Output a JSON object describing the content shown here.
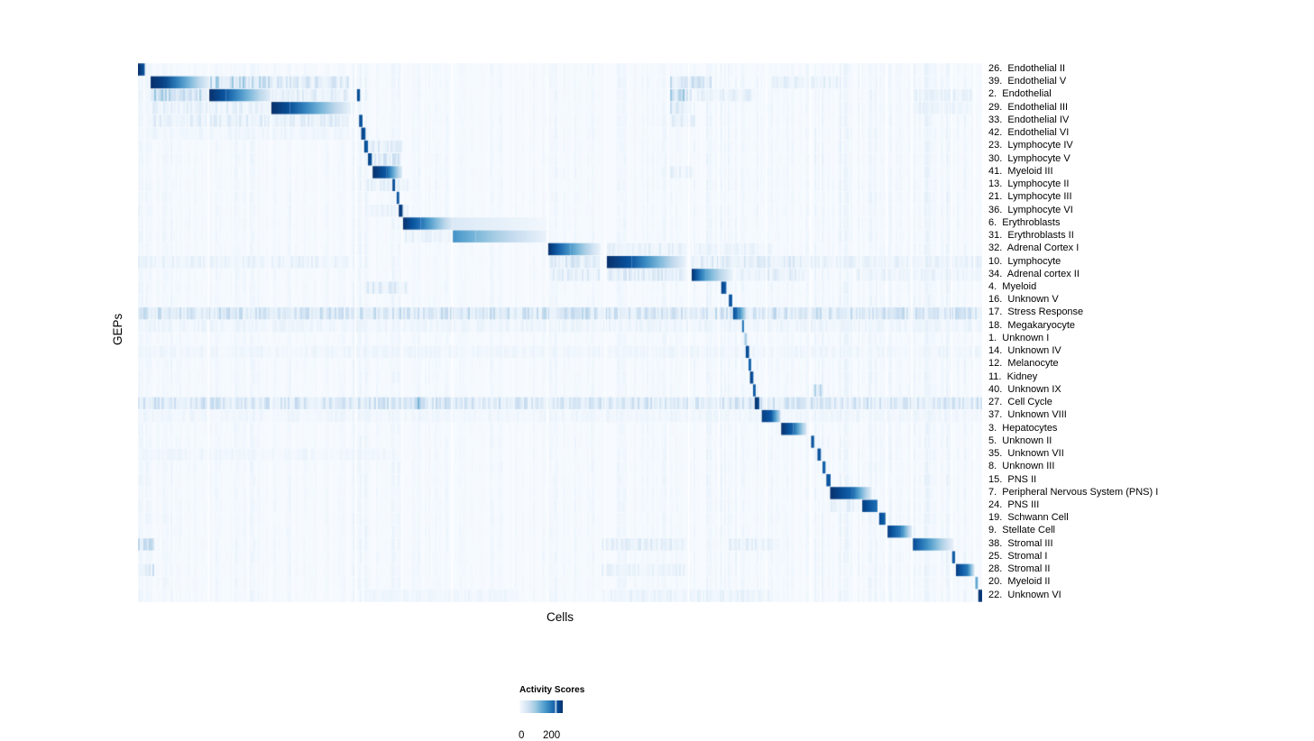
{
  "chart_data": {
    "type": "heatmap",
    "title": "",
    "xlabel": "Cells",
    "ylabel": "GEPs",
    "legend": {
      "title": "Activity Scores",
      "min": {
        "label": "0",
        "frac": 0.05
      },
      "max": {
        "label": "200",
        "frac": 0.84
      }
    },
    "colormap": {
      "name": "Blues",
      "stops": [
        "#f7fbff",
        "#deebf7",
        "#c6dbef",
        "#9ecae1",
        "#6baed6",
        "#4292c6",
        "#2171b5",
        "#08519c",
        "#08306b"
      ]
    },
    "value_range": [
      0,
      200
    ],
    "rows": [
      {
        "label": "26.  Endothelial II",
        "blocks": [
          [
            0.0,
            0.008,
            1.0,
            0.85
          ]
        ],
        "patches": []
      },
      {
        "label": "39.  Endothelial V",
        "blocks": [
          [
            0.015,
            0.032,
            1.0,
            0.92
          ],
          [
            0.032,
            0.085,
            0.92,
            0.08
          ]
        ],
        "patches": [
          [
            0.085,
            0.158,
            0.3
          ],
          [
            0.158,
            0.251,
            0.16
          ],
          [
            0.63,
            0.68,
            0.22
          ],
          [
            0.75,
            0.83,
            0.1
          ]
        ]
      },
      {
        "label": "2.  Endothelial",
        "blocks": [
          [
            0.0845,
            0.104,
            1.0,
            0.85
          ],
          [
            0.104,
            0.157,
            0.85,
            0.1
          ],
          [
            0.2595,
            0.263,
            0.92,
            0.85
          ]
        ],
        "patches": [
          [
            0.015,
            0.084,
            0.3
          ],
          [
            0.158,
            0.251,
            0.12
          ],
          [
            0.63,
            0.656,
            0.33
          ],
          [
            0.66,
            0.73,
            0.1
          ],
          [
            0.92,
            0.99,
            0.1
          ]
        ]
      },
      {
        "label": "29.  Endothelial III",
        "blocks": [
          [
            0.158,
            0.18,
            1.0,
            0.88
          ],
          [
            0.18,
            0.252,
            0.88,
            0.07
          ]
        ],
        "patches": [
          [
            0.015,
            0.157,
            0.1
          ],
          [
            0.63,
            0.656,
            0.18
          ],
          [
            0.92,
            0.99,
            0.08
          ]
        ]
      },
      {
        "label": "33.  Endothelial IV",
        "blocks": [
          [
            0.262,
            0.266,
            0.92,
            0.82
          ]
        ],
        "patches": [
          [
            0.015,
            0.251,
            0.12
          ],
          [
            0.63,
            0.66,
            0.12
          ]
        ]
      },
      {
        "label": "42.  Endothelial VI",
        "blocks": [
          [
            0.2645,
            0.2695,
            0.95,
            0.85
          ]
        ],
        "patches": [
          [
            0.015,
            0.251,
            0.05
          ]
        ]
      },
      {
        "label": "23.  Lymphocyte IV",
        "blocks": [
          [
            0.268,
            0.2725,
            0.92,
            0.8
          ]
        ],
        "patches": [
          [
            0.27,
            0.315,
            0.14
          ]
        ]
      },
      {
        "label": "30.  Lymphocyte V",
        "blocks": [
          [
            0.2725,
            0.277,
            0.95,
            0.85
          ]
        ],
        "patches": [
          [
            0.27,
            0.315,
            0.18
          ]
        ]
      },
      {
        "label": "41.  Myeloid III",
        "blocks": [
          [
            0.278,
            0.294,
            1.0,
            0.85
          ],
          [
            0.294,
            0.313,
            0.85,
            0.12
          ]
        ],
        "patches": [
          [
            0.63,
            0.66,
            0.1
          ]
        ]
      },
      {
        "label": "13.  Lymphocyte II",
        "blocks": [
          [
            0.3015,
            0.3045,
            0.92,
            0.85
          ]
        ],
        "patches": [
          [
            0.27,
            0.32,
            0.1
          ]
        ]
      },
      {
        "label": "21.  Lymphocyte III",
        "blocks": [
          [
            0.3065,
            0.3095,
            0.9,
            0.8
          ]
        ],
        "patches": []
      },
      {
        "label": "36.  Lymphocyte VI",
        "blocks": [
          [
            0.309,
            0.3135,
            1.0,
            0.9
          ]
        ],
        "patches": [
          [
            0.27,
            0.32,
            0.08
          ]
        ]
      },
      {
        "label": "6.  Erythroblasts",
        "blocks": [
          [
            0.314,
            0.335,
            1.0,
            0.75
          ],
          [
            0.335,
            0.372,
            0.75,
            0.14
          ],
          [
            0.372,
            0.484,
            0.14,
            0.03
          ]
        ],
        "patches": []
      },
      {
        "label": "31.  Erythroblasts II",
        "blocks": [
          [
            0.373,
            0.4,
            0.62,
            0.46
          ],
          [
            0.4,
            0.484,
            0.46,
            0.06
          ]
        ],
        "patches": [
          [
            0.314,
            0.372,
            0.08
          ]
        ]
      },
      {
        "label": "32.  Adrenal Cortex I",
        "blocks": [
          [
            0.486,
            0.512,
            1.0,
            0.6
          ],
          [
            0.512,
            0.548,
            0.6,
            0.06
          ]
        ],
        "patches": [
          [
            0.556,
            0.65,
            0.1
          ],
          [
            0.66,
            0.75,
            0.08
          ]
        ]
      },
      {
        "label": "10.  Lymphocyte",
        "blocks": [
          [
            0.5555,
            0.585,
            1.0,
            0.85
          ],
          [
            0.585,
            0.649,
            0.85,
            0.07
          ]
        ],
        "patches": [
          [
            0.0,
            0.251,
            0.08
          ],
          [
            0.487,
            0.548,
            0.16
          ],
          [
            0.656,
            0.78,
            0.14
          ],
          [
            0.78,
            1.0,
            0.09
          ]
        ]
      },
      {
        "label": "34.  Adrenal cortex II",
        "blocks": [
          [
            0.656,
            0.673,
            1.0,
            0.55
          ],
          [
            0.673,
            0.705,
            0.55,
            0.05
          ]
        ],
        "patches": [
          [
            0.487,
            0.548,
            0.12
          ],
          [
            0.556,
            0.649,
            0.15
          ],
          [
            0.71,
            0.79,
            0.12
          ],
          [
            0.85,
            1.0,
            0.08
          ]
        ]
      },
      {
        "label": "4.  Myeloid",
        "blocks": [
          [
            0.691,
            0.697,
            0.95,
            0.8
          ]
        ],
        "patches": [
          [
            0.27,
            0.32,
            0.14
          ]
        ]
      },
      {
        "label": "16.  Unknown V",
        "blocks": [
          [
            0.7,
            0.704,
            0.9,
            0.8
          ]
        ],
        "patches": []
      },
      {
        "label": "17.  Stress Response",
        "blocks": [
          [
            0.705,
            0.711,
            0.9,
            0.72
          ],
          [
            0.711,
            0.72,
            0.72,
            0.25
          ]
        ],
        "patches": [
          [
            0.0,
            1.0,
            0.22
          ]
        ]
      },
      {
        "label": "18.  Megakaryocyte",
        "blocks": [
          [
            0.7157,
            0.7179,
            0.75,
            0.7
          ]
        ],
        "patches": [
          [
            0.0,
            1.0,
            0.06
          ]
        ]
      },
      {
        "label": "1.  Unknown I",
        "blocks": [
          [
            0.7185,
            0.7215,
            0.38,
            0.3
          ]
        ],
        "patches": []
      },
      {
        "label": "14.  Unknown IV",
        "blocks": [
          [
            0.72,
            0.724,
            0.92,
            0.85
          ]
        ],
        "patches": [
          [
            0.0,
            1.0,
            0.05
          ]
        ]
      },
      {
        "label": "12.  Melanocyte",
        "blocks": [
          [
            0.7233,
            0.7265,
            0.82,
            0.75
          ]
        ],
        "patches": []
      },
      {
        "label": "11.  Kidney",
        "blocks": [
          [
            0.725,
            0.729,
            0.95,
            0.85
          ]
        ],
        "patches": []
      },
      {
        "label": "40.  Unknown IX",
        "blocks": [
          [
            0.7286,
            0.7318,
            0.85,
            0.78
          ]
        ],
        "patches": [
          [
            0.8,
            0.812,
            0.28
          ]
        ]
      },
      {
        "label": "27.  Cell Cycle",
        "blocks": [
          [
            0.7307,
            0.736,
            1.0,
            0.9
          ]
        ],
        "patches": [
          [
            0.0,
            1.0,
            0.2
          ],
          [
            0.315,
            0.34,
            0.35
          ]
        ]
      },
      {
        "label": "37.  Unknown VIII",
        "blocks": [
          [
            0.739,
            0.75,
            0.95,
            0.85
          ],
          [
            0.75,
            0.761,
            0.85,
            0.25
          ]
        ],
        "patches": [
          [
            0.0,
            1.0,
            0.05
          ]
        ]
      },
      {
        "label": "3.  Hepatocytes",
        "blocks": [
          [
            0.762,
            0.776,
            1.0,
            0.8
          ],
          [
            0.776,
            0.792,
            0.8,
            0.15
          ]
        ],
        "patches": []
      },
      {
        "label": "5.  Unknown II",
        "blocks": [
          [
            0.7975,
            0.801,
            0.9,
            0.82
          ]
        ],
        "patches": []
      },
      {
        "label": "35.  Unknown VII",
        "blocks": [
          [
            0.805,
            0.809,
            0.9,
            0.82
          ]
        ],
        "patches": [
          [
            0.0,
            0.3,
            0.05
          ]
        ]
      },
      {
        "label": "8.  Unknown III",
        "blocks": [
          [
            0.811,
            0.8145,
            0.86,
            0.78
          ]
        ],
        "patches": []
      },
      {
        "label": "15.  PNS II",
        "blocks": [
          [
            0.8155,
            0.8205,
            0.9,
            0.82
          ]
        ],
        "patches": []
      },
      {
        "label": "7.  Peripheral Nervous System (PNS) I",
        "blocks": [
          [
            0.82,
            0.846,
            1.0,
            0.8
          ],
          [
            0.846,
            0.869,
            0.8,
            0.12
          ]
        ],
        "patches": []
      },
      {
        "label": "24.  PNS III",
        "blocks": [
          [
            0.858,
            0.876,
            0.95,
            0.75
          ]
        ],
        "patches": [
          [
            0.82,
            0.855,
            0.1
          ]
        ]
      },
      {
        "label": "19.  Schwann Cell",
        "blocks": [
          [
            0.878,
            0.8855,
            0.9,
            0.8
          ]
        ],
        "patches": []
      },
      {
        "label": "9.  Stellate Cell",
        "blocks": [
          [
            0.888,
            0.904,
            0.95,
            0.7
          ],
          [
            0.904,
            0.917,
            0.7,
            0.12
          ]
        ],
        "patches": []
      },
      {
        "label": "38.  Stromal III",
        "blocks": [
          [
            0.918,
            0.937,
            0.9,
            0.6
          ],
          [
            0.937,
            0.966,
            0.6,
            0.08
          ]
        ],
        "patches": [
          [
            0.55,
            0.65,
            0.12
          ],
          [
            0.7,
            0.76,
            0.1
          ],
          [
            0.0,
            0.02,
            0.22
          ]
        ]
      },
      {
        "label": "25.  Stromal I",
        "blocks": [
          [
            0.9645,
            0.968,
            0.85,
            0.8
          ]
        ],
        "patches": []
      },
      {
        "label": "28.  Stromal II",
        "blocks": [
          [
            0.969,
            0.983,
            0.95,
            0.72
          ],
          [
            0.983,
            0.991,
            0.72,
            0.15
          ]
        ],
        "patches": [
          [
            0.55,
            0.65,
            0.08
          ],
          [
            0.0,
            0.02,
            0.18
          ]
        ]
      },
      {
        "label": "20.  Myeloid II",
        "blocks": [
          [
            0.992,
            0.995,
            0.55,
            0.5
          ]
        ],
        "patches": []
      },
      {
        "label": "22.  Unknown VI",
        "blocks": [
          [
            0.9955,
            1.0,
            1.0,
            0.95
          ]
        ],
        "patches": [
          [
            0.55,
            0.75,
            0.08
          ],
          [
            0.27,
            0.45,
            0.05
          ]
        ]
      }
    ],
    "column_boundaries": [
      0.0833,
      0.157,
      0.2575,
      0.313,
      0.372,
      0.485,
      0.5535,
      0.6525,
      0.688,
      0.7445,
      0.796,
      0.8565,
      0.8865,
      0.9165,
      0.9635,
      0.9905
    ],
    "noise": {
      "seed": 11,
      "clusters": [
        [
          0.0,
          0.015,
          0.1
        ],
        [
          0.015,
          0.085,
          0.06
        ],
        [
          0.085,
          0.158,
          0.06
        ],
        [
          0.158,
          0.252,
          0.05
        ],
        [
          0.252,
          0.315,
          0.07
        ],
        [
          0.315,
          0.487,
          0.05
        ],
        [
          0.487,
          0.556,
          0.06
        ],
        [
          0.556,
          0.6525,
          0.06
        ],
        [
          0.6525,
          0.7,
          0.09
        ],
        [
          0.7,
          0.7445,
          0.07
        ],
        [
          0.7445,
          0.796,
          0.06
        ],
        [
          0.796,
          0.8565,
          0.08
        ],
        [
          0.8565,
          0.93,
          0.07
        ],
        [
          0.93,
          1.0,
          0.09
        ]
      ]
    }
  }
}
